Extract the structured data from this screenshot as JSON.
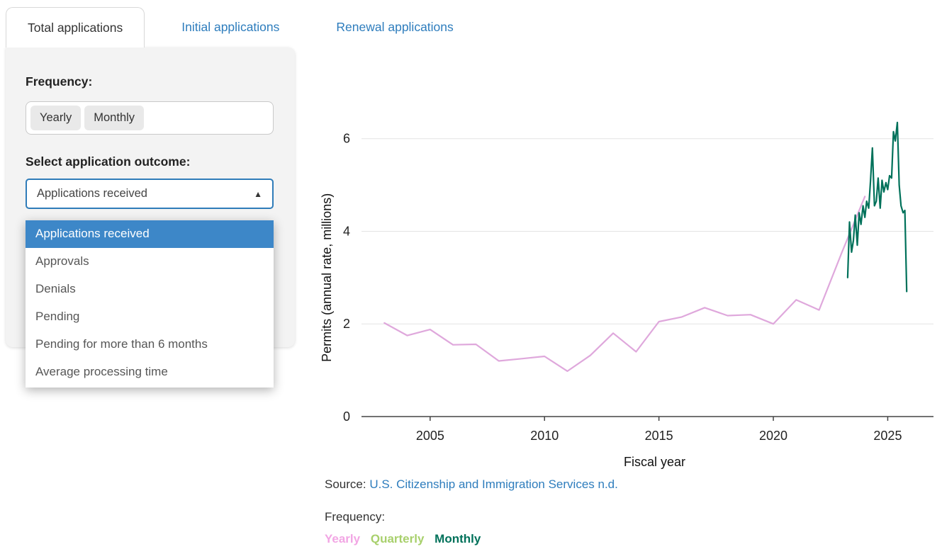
{
  "tabs": [
    {
      "label": "Total applications",
      "active": true
    },
    {
      "label": "Initial applications",
      "active": false
    },
    {
      "label": "Renewal applications",
      "active": false
    }
  ],
  "panel": {
    "frequency_label": "Frequency:",
    "frequency_options": [
      "Yearly",
      "Monthly"
    ],
    "outcome_label": "Select application outcome:",
    "dropdown": {
      "selected": "Applications received",
      "highlighted_index": 0,
      "options": [
        "Applications received",
        "Approvals",
        "Denials",
        "Pending",
        "Pending for more than 6 months",
        "Average processing time"
      ]
    }
  },
  "chart_data": {
    "type": "line",
    "title": "",
    "xlabel": "Fiscal year",
    "ylabel": "Permits (annual rate, millions)",
    "xlim": [
      2002,
      2027
    ],
    "ylim": [
      0,
      6.5
    ],
    "xticks": [
      2005,
      2010,
      2015,
      2020,
      2025
    ],
    "yticks": [
      0,
      2,
      4,
      6
    ],
    "grid": true,
    "legend_position": "below",
    "series": [
      {
        "name": "Yearly",
        "color": "#dfa8dc",
        "x": [
          2003,
          2004,
          2005,
          2006,
          2007,
          2008,
          2009,
          2010,
          2011,
          2012,
          2013,
          2014,
          2015,
          2016,
          2017,
          2018,
          2019,
          2020,
          2021,
          2022,
          2023,
          2024
        ],
        "y": [
          2.02,
          1.75,
          1.88,
          1.55,
          1.56,
          1.2,
          1.25,
          1.3,
          0.98,
          1.32,
          1.8,
          1.4,
          2.05,
          2.15,
          2.35,
          2.18,
          2.2,
          2.0,
          2.52,
          2.3,
          3.55,
          4.75
        ]
      },
      {
        "name": "Monthly",
        "color": "#00715a",
        "x": [
          2023.25,
          2023.33,
          2023.42,
          2023.5,
          2023.58,
          2023.67,
          2023.75,
          2023.83,
          2023.92,
          2024.0,
          2024.08,
          2024.17,
          2024.25,
          2024.33,
          2024.42,
          2024.5,
          2024.58,
          2024.67,
          2024.75,
          2024.83,
          2024.92,
          2025.0,
          2025.08,
          2025.17,
          2025.25,
          2025.33,
          2025.42,
          2025.5,
          2025.58,
          2025.67,
          2025.75,
          2025.83
        ],
        "y": [
          3.0,
          4.2,
          3.55,
          3.8,
          4.35,
          3.7,
          4.4,
          4.15,
          4.55,
          4.3,
          4.65,
          4.5,
          5.1,
          5.8,
          4.55,
          4.65,
          5.15,
          4.5,
          5.1,
          4.85,
          5.05,
          4.9,
          5.2,
          5.15,
          6.15,
          5.95,
          6.35,
          5.0,
          4.55,
          4.4,
          4.45,
          2.7
        ]
      }
    ]
  },
  "source": {
    "prefix": "Source: ",
    "link_text": "U.S. Citizenship and Immigration Services n.d."
  },
  "legend": {
    "label": "Frequency:",
    "items": [
      {
        "label": "Yearly",
        "color": "#f2a6e4"
      },
      {
        "label": "Quarterly",
        "color": "#a8d06c"
      },
      {
        "label": "Monthly",
        "color": "#00715a"
      }
    ]
  }
}
